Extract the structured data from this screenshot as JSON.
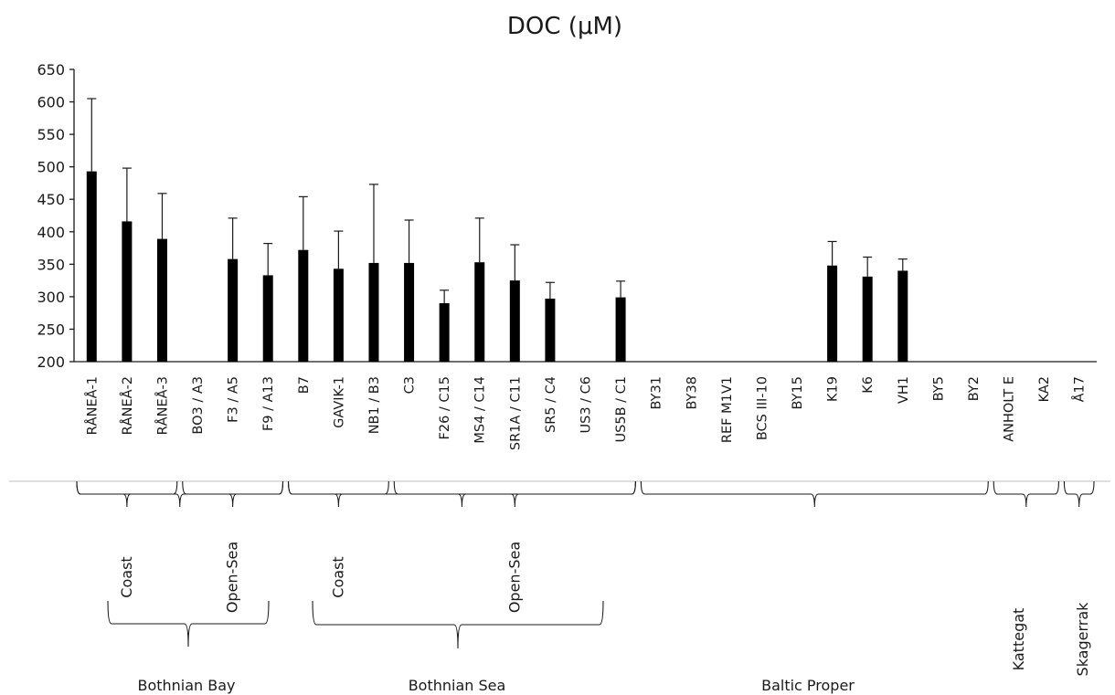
{
  "chart_data": {
    "type": "bar",
    "title": "DOC (μM)",
    "xlabel": "",
    "ylabel": "",
    "ylim": [
      200,
      650
    ],
    "yticks": [
      200,
      250,
      300,
      350,
      400,
      450,
      500,
      550,
      600,
      650
    ],
    "grid": false,
    "categories": [
      "RÅNEÅ-1",
      "RÅNEÅ-2",
      "RÅNEÅ-3",
      "BO3 / A3",
      "F3 / A5",
      "F9 / A13",
      "B7",
      "GAVIK-1",
      "NB1 / B3",
      "C3",
      "F26 / C15",
      "MS4 / C14",
      "SR1A / C11",
      "SR5 / C4",
      "US3 / C6",
      "US5B / C1",
      "BY31",
      "BY38",
      "REF M1V1",
      "BCS III-10",
      "BY15",
      "K19",
      "K6",
      "VH1",
      "BY5",
      "BY2",
      "ANHOLT E",
      "KA2",
      "Å17"
    ],
    "values": [
      493,
      416,
      389,
      null,
      358,
      333,
      372,
      343,
      352,
      352,
      290,
      353,
      325,
      297,
      null,
      299,
      null,
      null,
      null,
      null,
      null,
      348,
      331,
      340,
      null,
      null,
      null,
      null,
      null
    ],
    "error_upper": [
      605,
      498,
      459,
      null,
      421,
      382,
      454,
      401,
      473,
      418,
      310,
      421,
      380,
      322,
      null,
      324,
      null,
      null,
      null,
      null,
      null,
      385,
      361,
      358,
      null,
      null,
      null,
      null,
      null
    ]
  },
  "sub_groups": [
    {
      "label": "Coast",
      "first": 0,
      "last": 2
    },
    {
      "label": "Open-Sea",
      "first": 3,
      "last": 5
    },
    {
      "label": "Coast",
      "first": 6,
      "last": 8
    },
    {
      "label": "Open-Sea",
      "first": 9,
      "last": 15
    }
  ],
  "regions": [
    {
      "label": "Bothnian Bay",
      "first": 0,
      "last": 5,
      "label_vertical": false
    },
    {
      "label": "Bothnian Sea",
      "first": 6,
      "last": 15,
      "label_vertical": false
    },
    {
      "label": "Baltic Proper",
      "first": 16,
      "last": 25,
      "label_vertical": false
    },
    {
      "label": "Kattegat",
      "first": 26,
      "last": 27,
      "label_vertical": true
    },
    {
      "label": "Skagerrak",
      "first": 28,
      "last": 28,
      "label_vertical": true
    }
  ],
  "colors": {
    "bar": "#000000",
    "axis": "#1a1a1a",
    "separator": "#bfbfbf"
  }
}
